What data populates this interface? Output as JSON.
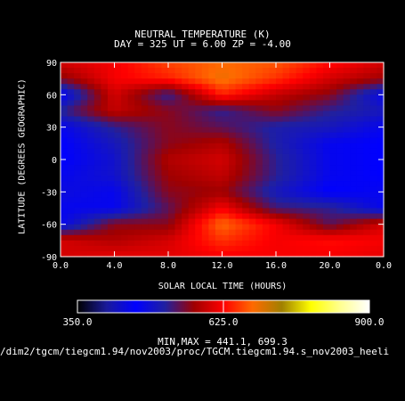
{
  "header": {
    "title": "NEUTRAL TEMPERATURE (K)",
    "subtitle": "DAY = 325   UT =   6.00   ZP =   -4.00"
  },
  "axes": {
    "xlabel": "SOLAR LOCAL TIME (HOURS)",
    "ylabel": "LATITUDE (DEGREES GEOGRAPHIC)"
  },
  "colorbar": {
    "min_label": "350.0",
    "mid_label": "625.0",
    "max_label": "900.0",
    "stops": [
      "#000000",
      "#1a1a9a",
      "#0000ff",
      "#2020a0",
      "#a00000",
      "#ff0000",
      "#ff6a00",
      "#a08000",
      "#ffff00",
      "#ffff90",
      "#ffffff"
    ]
  },
  "footer": {
    "minmax": "MIN,MAX =       441.1,     699.3",
    "path": "/dim2/tgcm/tiegcm1.94/nov2003/proc/TGCM.tiegcm1.94.s_nov2003_heeli"
  },
  "colors": {
    "background": "#000000",
    "foreground": "#ffffff"
  },
  "chart_data": {
    "type": "heatmap",
    "title": "NEUTRAL TEMPERATURE (K)",
    "xlabel": "SOLAR LOCAL TIME (HOURS)",
    "ylabel": "LATITUDE (DEGREES GEOGRAPHIC)",
    "xlim": [
      0,
      24
    ],
    "ylim": [
      -90,
      90
    ],
    "x_ticks": [
      "0.0",
      "4.0",
      "8.0",
      "12.0",
      "16.0",
      "20.0",
      "0.0"
    ],
    "y_ticks": [
      "90",
      "60",
      "30",
      "0",
      "-30",
      "-60",
      "-90"
    ],
    "colorbar_range": [
      350,
      900
    ],
    "min": 441.1,
    "max": 699.3,
    "x": [
      0,
      4,
      8,
      12,
      16,
      20,
      24
    ],
    "y": [
      90,
      75,
      60,
      45,
      30,
      15,
      0,
      -15,
      -30,
      -45,
      -60,
      -75,
      -90
    ],
    "z": [
      [
        600,
        620,
        660,
        680,
        670,
        630,
        600
      ],
      [
        560,
        620,
        640,
        690,
        650,
        600,
        570
      ],
      [
        460,
        600,
        520,
        640,
        590,
        560,
        470
      ],
      [
        520,
        590,
        560,
        520,
        560,
        520,
        500
      ],
      [
        470,
        520,
        560,
        540,
        510,
        500,
        470
      ],
      [
        460,
        500,
        560,
        580,
        510,
        470,
        460
      ],
      [
        460,
        490,
        580,
        600,
        520,
        470,
        460
      ],
      [
        470,
        490,
        570,
        590,
        520,
        470,
        460
      ],
      [
        480,
        470,
        560,
        570,
        500,
        460,
        470
      ],
      [
        470,
        470,
        540,
        620,
        530,
        520,
        470
      ],
      [
        470,
        560,
        560,
        680,
        620,
        540,
        600
      ],
      [
        600,
        580,
        600,
        650,
        620,
        630,
        620
      ],
      [
        600,
        610,
        610,
        620,
        620,
        620,
        610
      ]
    ]
  }
}
